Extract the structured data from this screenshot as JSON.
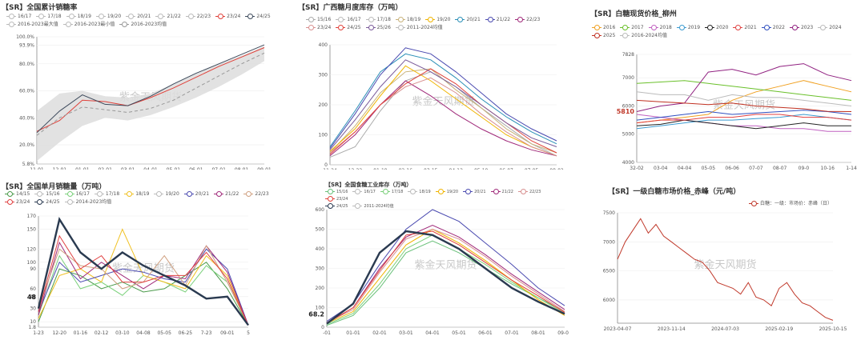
{
  "charts": [
    {
      "title": "【SR】全国累计销糖率",
      "type": "line",
      "legend_rows": [
        [
          "16/17",
          "17/18",
          "18/19",
          "19/20",
          "20/21",
          "21/22",
          "22/23",
          "23/24",
          "24/25"
        ],
        [
          "2016-2023最大值",
          "2016-2023最小值",
          "2016-2023均值"
        ]
      ],
      "categories": [
        "11-01",
        "12-01",
        "01-01",
        "02-01",
        "03-01",
        "04-01",
        "05-01",
        "06-01",
        "07-01",
        "08-01",
        "09-01"
      ],
      "ylim": [
        5.8,
        100
      ],
      "y_ticks": [
        "100.0%",
        "93.9%",
        "80.0%",
        "60.0%",
        "40.0%",
        "20.0%",
        "5.8%"
      ],
      "series": [
        {
          "name": "23/24",
          "color": "#e0413a",
          "values": [
            30,
            38,
            53,
            52,
            49,
            55,
            62,
            70,
            78,
            85,
            92
          ]
        },
        {
          "name": "24/25",
          "color": "#3d4a5c",
          "values": [
            29,
            45,
            57,
            50,
            49,
            56,
            65,
            73,
            80,
            87,
            94
          ]
        },
        {
          "name": "2016-2023均值",
          "color": "#999999",
          "dashed": true,
          "values": [
            27,
            40,
            48,
            46,
            44,
            47,
            53,
            62,
            71,
            80,
            88
          ]
        }
      ],
      "band": {
        "upper": [
          45,
          58,
          60,
          56,
          55,
          58,
          65,
          73,
          80,
          86,
          93
        ],
        "lower": [
          8,
          22,
          34,
          40,
          38,
          42,
          48,
          55,
          63,
          72,
          82
        ]
      },
      "watermark": "紫金天风期货"
    },
    {
      "title": "【SR】广西糖月度库存（万吨）",
      "type": "line",
      "legend_rows": [
        [
          "15/16",
          "16/17",
          "17/18",
          "18/19",
          "19/20",
          "20/21",
          "21/22",
          "22/23"
        ],
        [
          "23/24",
          "24/25",
          "25/26",
          "2011-2024均值"
        ]
      ],
      "categories": [
        "11-24",
        "12-22",
        "01-19",
        "02-16",
        "03-15",
        "04-12",
        "05-10",
        "06-07",
        "07-05",
        "08-02"
      ],
      "ylim": [
        0,
        400
      ],
      "y_ticks": [
        "400",
        "300",
        "200",
        "100",
        "0"
      ],
      "series": [
        {
          "name": "15/16",
          "color": "#aaaaaa",
          "values": [
            25,
            60,
            180,
            280,
            310,
            260,
            190,
            130,
            70,
            30
          ]
        },
        {
          "name": "18/19",
          "color": "#c8b27a",
          "values": [
            40,
            130,
            240,
            310,
            320,
            250,
            190,
            120,
            70,
            40
          ]
        },
        {
          "name": "19/20",
          "color": "#f0b400",
          "values": [
            45,
            120,
            230,
            330,
            280,
            220,
            160,
            100,
            60,
            30
          ]
        },
        {
          "name": "20/21",
          "color": "#2a8fb7",
          "values": [
            60,
            180,
            310,
            370,
            350,
            290,
            220,
            160,
            110,
            70
          ]
        },
        {
          "name": "21/22",
          "color": "#4a4ab0",
          "values": [
            55,
            170,
            300,
            390,
            370,
            310,
            240,
            170,
            120,
            80
          ]
        },
        {
          "name": "22/23",
          "color": "#a02a7a",
          "values": [
            30,
            100,
            200,
            280,
            230,
            170,
            120,
            80,
            50,
            30
          ]
        },
        {
          "name": "23/24",
          "color": "#d89090",
          "values": [
            40,
            110,
            200,
            260,
            290,
            240,
            170,
            110,
            60,
            30
          ]
        },
        {
          "name": "24/25",
          "color": "#e0413a",
          "values": [
            35,
            110,
            200,
            270,
            320,
            270,
            200,
            140,
            80,
            40
          ]
        },
        {
          "name": "25/26",
          "color": "#7a5a9a",
          "values": [
            50,
            150,
            260,
            350,
            310,
            260,
            200,
            140,
            90,
            60
          ]
        }
      ],
      "watermark": "紫金天风期货"
    },
    {
      "title": "【SR】白糖现货价格_柳州",
      "type": "line",
      "legend_rows": [
        [
          "2016",
          "2017",
          "2018",
          "2019",
          "2020",
          "2021",
          "2022",
          "2023",
          "2024"
        ],
        [
          "2025",
          "2016-2024均值"
        ]
      ],
      "categories": [
        "32-02",
        "03-04",
        "04-04",
        "05-05",
        "06-06",
        "07-07",
        "08-07",
        "09-0",
        "10-16",
        "1-14"
      ],
      "ylim": [
        4000,
        7828
      ],
      "y_ticks": [
        "7828",
        "7000",
        "6000",
        "5000",
        "4000"
      ],
      "current_label": "5810",
      "series": [
        {
          "name": "2016",
          "color": "#f0a020",
          "values": [
            5400,
            5500,
            5600,
            5700,
            6200,
            6500,
            6700,
            6900,
            6700,
            6500
          ]
        },
        {
          "name": "2017",
          "color": "#6ac02a",
          "values": [
            6800,
            6850,
            6900,
            6800,
            6700,
            6600,
            6500,
            6400,
            6300,
            6200
          ]
        },
        {
          "name": "2018",
          "color": "#c060c0",
          "values": [
            5700,
            5600,
            5500,
            5400,
            5300,
            5300,
            5200,
            5200,
            5100,
            5100
          ]
        },
        {
          "name": "2019",
          "color": "#3a9ad0",
          "values": [
            5200,
            5300,
            5400,
            5500,
            5500,
            5550,
            5600,
            5700,
            5600,
            5500
          ]
        },
        {
          "name": "2020",
          "color": "#222222",
          "values": [
            5300,
            5350,
            5500,
            5400,
            5300,
            5200,
            5300,
            5400,
            5300,
            5300
          ]
        },
        {
          "name": "2021",
          "color": "#e04040",
          "values": [
            5400,
            5500,
            5500,
            5600,
            5600,
            5700,
            5700,
            5600,
            5600,
            5500
          ]
        },
        {
          "name": "2022",
          "color": "#3050c0",
          "values": [
            5500,
            5600,
            5700,
            5800,
            5700,
            5750,
            5800,
            5850,
            5800,
            5700
          ]
        },
        {
          "name": "2023",
          "color": "#902080",
          "values": [
            5800,
            6000,
            6100,
            7200,
            7300,
            7100,
            7400,
            7500,
            7100,
            6900
          ]
        },
        {
          "name": "2024",
          "color": "#bbbbbb",
          "values": [
            6500,
            6400,
            6400,
            6200,
            6400,
            6300,
            6300,
            6200,
            6100,
            6000
          ]
        },
        {
          "name": "2025",
          "color": "#c03020",
          "values": [
            6200,
            6150,
            6100,
            6050,
            6100,
            6000,
            5950,
            5900,
            5810,
            5800
          ]
        }
      ],
      "watermark": "紫金天风期货"
    },
    {
      "title": "【SR】全国单月销糖量（万吨）",
      "type": "line",
      "legend_rows": [
        [
          "14/15",
          "15/16",
          "16/17",
          "17/18",
          "18/19",
          "19/20",
          "20/21",
          "21/22",
          "22/23"
        ],
        [
          "23/24",
          "24/25",
          "2014-2023均值"
        ]
      ],
      "categories": [
        "1-23",
        "12-20",
        "01-16",
        "02-12",
        "03-10",
        "04-08",
        "05-05",
        "06-25",
        "7-23",
        "09-01",
        "5"
      ],
      "ylim": [
        1.8,
        170
      ],
      "y_ticks": [
        "1.8",
        "10",
        "30",
        "48",
        "60",
        "90",
        "100",
        "120",
        "150",
        "170"
      ],
      "current_label": "48",
      "series": [
        {
          "name": "14/15",
          "color": "#4a9a4a",
          "values": [
            10,
            90,
            80,
            60,
            70,
            55,
            60,
            80,
            100,
            60,
            5
          ]
        },
        {
          "name": "16/17",
          "color": "#7ad07a",
          "values": [
            20,
            110,
            60,
            70,
            50,
            80,
            70,
            55,
            95,
            70,
            5
          ]
        },
        {
          "name": "18/19",
          "color": "#f0c020",
          "values": [
            15,
            80,
            90,
            70,
            150,
            80,
            70,
            60,
            110,
            80,
            5
          ]
        },
        {
          "name": "20/21",
          "color": "#4a4ab0",
          "values": [
            25,
            100,
            70,
            80,
            90,
            85,
            75,
            70,
            120,
            90,
            5
          ]
        },
        {
          "name": "21/22",
          "color": "#a02a7a",
          "values": [
            20,
            130,
            75,
            100,
            80,
            60,
            80,
            75,
            125,
            85,
            5
          ]
        },
        {
          "name": "22/23",
          "color": "#d0a080",
          "values": [
            30,
            120,
            95,
            90,
            60,
            70,
            110,
            65,
            125,
            70,
            5
          ]
        },
        {
          "name": "23/24",
          "color": "#e04040",
          "values": [
            25,
            140,
            90,
            110,
            70,
            70,
            80,
            80,
            115,
            75,
            5
          ]
        },
        {
          "name": "24/25",
          "color": "#2a3a50",
          "bold": true,
          "values": [
            30,
            165,
            115,
            90,
            115,
            95,
            80,
            65,
            45,
            48,
            5
          ]
        }
      ],
      "watermark": "紫金天风期货"
    },
    {
      "title": "【SR】全国食糖工业库存（万吨）",
      "type": "line",
      "legend_rows": [
        [
          "15/16",
          "16/17",
          "17/18",
          "18/19",
          "19/20",
          "20/21",
          "21/22",
          "22/23",
          "23/24"
        ],
        [
          "24/25",
          "2011-2024均值"
        ]
      ],
      "categories": [
        "-01",
        "01-01",
        "02-01",
        "03-01",
        "04-01",
        "05-01",
        "06-01",
        "07-01",
        "08-01",
        "09-01"
      ],
      "ylim": [
        0,
        600
      ],
      "y_ticks": [
        "600",
        "500",
        "400",
        "300",
        "200",
        "100",
        "0"
      ],
      "current_label": "68.2",
      "series": [
        {
          "name": "15/16",
          "color": "#6ac07a",
          "values": [
            10,
            60,
            200,
            380,
            440,
            380,
            300,
            220,
            150,
            80
          ]
        },
        {
          "name": "17/18",
          "color": "#7ad07a",
          "values": [
            15,
            70,
            220,
            400,
            470,
            400,
            320,
            230,
            150,
            70
          ]
        },
        {
          "name": "19/20",
          "color": "#f0b400",
          "values": [
            20,
            80,
            250,
            420,
            500,
            430,
            340,
            240,
            140,
            60
          ]
        },
        {
          "name": "20/21",
          "color": "#4a4ab0",
          "values": [
            30,
            120,
            320,
            500,
            600,
            540,
            430,
            320,
            200,
            110
          ]
        },
        {
          "name": "21/22",
          "color": "#a02a7a",
          "values": [
            20,
            100,
            300,
            460,
            520,
            460,
            370,
            270,
            180,
            90
          ]
        },
        {
          "name": "22/23",
          "color": "#d89090",
          "values": [
            25,
            90,
            280,
            450,
            500,
            450,
            360,
            260,
            170,
            80
          ]
        },
        {
          "name": "23/24",
          "color": "#e0413a",
          "values": [
            20,
            100,
            290,
            470,
            490,
            420,
            330,
            240,
            160,
            75
          ]
        },
        {
          "name": "24/25",
          "color": "#2a3a50",
          "bold": true,
          "values": [
            18,
            120,
            380,
            490,
            470,
            400,
            300,
            200,
            130,
            68.2
          ]
        }
      ],
      "watermark": "紫金天风期货"
    },
    {
      "title": "【SR】一级白糖市场价格_赤峰（元/吨）",
      "type": "line",
      "legend": [
        "白糖：一级：市场价：赤峰（日）"
      ],
      "categories": [
        "2023-04-07",
        "2023-11-14",
        "2024-07-03",
        "2025-02-19",
        "2025-10-15"
      ],
      "ylim": [
        5600,
        7500
      ],
      "y_ticks": [
        "7500",
        "7000",
        "6500",
        "6000"
      ],
      "series": [
        {
          "name": "白糖：一级：市场价：赤峰（日）",
          "color": "#c0392b",
          "values": [
            6700,
            7000,
            7200,
            7400,
            7150,
            7300,
            7100,
            7000,
            6900,
            6800,
            6700,
            6650,
            6500,
            6300,
            6250,
            6200,
            6100,
            6300,
            6050,
            6000,
            5900,
            6200,
            6300,
            6100,
            5950,
            5900,
            5800,
            5700,
            5650
          ]
        }
      ],
      "watermark": "紫金天风期货"
    }
  ]
}
